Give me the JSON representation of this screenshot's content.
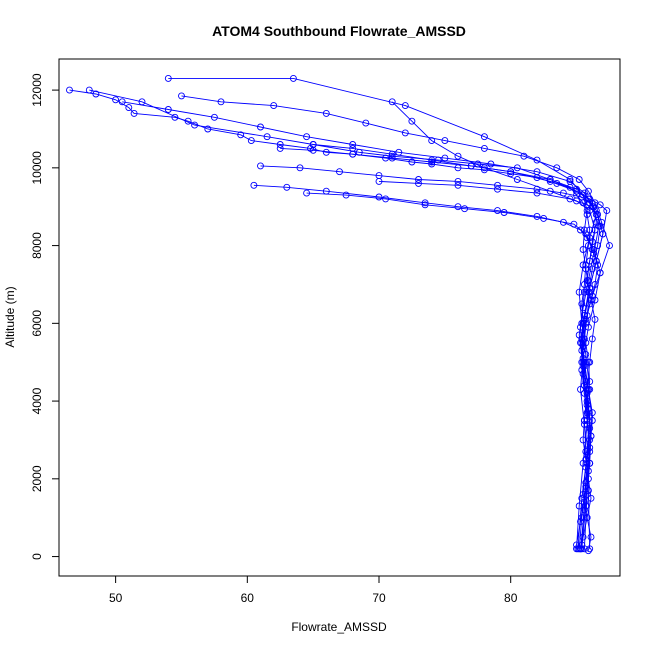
{
  "chart_data": {
    "type": "line",
    "title": "ATOM4 Southbound Flowrate_AMSSD",
    "xlabel": "Flowrate_AMSSD",
    "ylabel": "Altitude (m)",
    "xlim": [
      45.7,
      88.3
    ],
    "ylim": [
      -500,
      12800
    ],
    "x_ticks": [
      50,
      60,
      70,
      80
    ],
    "y_ticks": [
      0,
      2000,
      4000,
      6000,
      8000,
      10000,
      12000
    ],
    "marker": "open-circle",
    "series_color": "#0000ff",
    "grid": false,
    "legend": "none",
    "series": [
      {
        "x": [
          46.5,
          48.5,
          50.0,
          51.0,
          51.4,
          54.5,
          55.5,
          57.0,
          59.5,
          60.3,
          62.5,
          64.8,
          66.0,
          68.0,
          70.5,
          72.5,
          74.0,
          76.0,
          78.0,
          80.0,
          82.0,
          83.5,
          84.5,
          85.0,
          85.5,
          85.8,
          86.0,
          85.9,
          85.7,
          85.6,
          85.4,
          85.5,
          85.7,
          85.9,
          86.0,
          85.8,
          85.6,
          85.5,
          85.7,
          85.9,
          86.1,
          85.8,
          85.5,
          85.3
        ],
        "y": [
          12000,
          11900,
          11750,
          11550,
          11400,
          11300,
          11200,
          11000,
          10850,
          10700,
          10600,
          10500,
          10400,
          10350,
          10250,
          10150,
          10100,
          10000,
          9950,
          9850,
          9750,
          9600,
          9500,
          9300,
          9100,
          8800,
          8400,
          8000,
          7500,
          7000,
          6500,
          6000,
          5500,
          5000,
          4500,
          4000,
          3500,
          3000,
          2500,
          2000,
          1500,
          1000,
          500,
          200
        ]
      },
      {
        "x": [
          54.0,
          63.5,
          72.0,
          78.0,
          82.0,
          84.5,
          85.5,
          85.8,
          85.6,
          85.5,
          85.7,
          86.0,
          85.8,
          85.6,
          85.4,
          85.6,
          85.9,
          86.1,
          86.0,
          85.8,
          85.6
        ],
        "y": [
          12300,
          12300,
          11600,
          10800,
          10200,
          9700,
          9300,
          8900,
          8400,
          7900,
          7400,
          6800,
          6200,
          5600,
          5000,
          4400,
          3800,
          3100,
          2400,
          1600,
          200
        ]
      },
      {
        "x": [
          48.0,
          52.0,
          56.0,
          61.5,
          65.0,
          68.5,
          71.0,
          74.5,
          77.5,
          80.5,
          83.0,
          85.0,
          85.9,
          86.3,
          86.5,
          86.2,
          86.0,
          85.8,
          86.1,
          86.4,
          86.2,
          86.0,
          85.8,
          85.6,
          85.7,
          85.9,
          86.0
        ],
        "y": [
          12000,
          11700,
          11100,
          10800,
          10600,
          10400,
          10300,
          10200,
          10100,
          10000,
          9700,
          9400,
          9200,
          9000,
          8600,
          8100,
          7600,
          7100,
          6600,
          6100,
          5600,
          5000,
          4300,
          3500,
          2700,
          1700,
          200
        ]
      },
      {
        "x": [
          60.5,
          63.0,
          66.0,
          70.0,
          73.5,
          76.0,
          79.0,
          82.0,
          84.0,
          85.3,
          85.8,
          86.2,
          86.6,
          86.4,
          86.0,
          85.7,
          85.5,
          85.4,
          85.6,
          85.8,
          86.0,
          85.7,
          85.3,
          85.0
        ],
        "y": [
          9550,
          9500,
          9400,
          9250,
          9100,
          9000,
          8900,
          8750,
          8600,
          8400,
          8200,
          7900,
          7500,
          7000,
          6500,
          6000,
          5400,
          4800,
          4200,
          3500,
          2800,
          1800,
          900,
          300
        ]
      },
      {
        "x": [
          61.0,
          64.0,
          67.0,
          70.0,
          73.0,
          76.0,
          79.0,
          82.0,
          84.0,
          85.4,
          86.0,
          86.5,
          86.8,
          86.6,
          86.2,
          85.9,
          85.6,
          85.4,
          85.6,
          85.9,
          86.2,
          86.0,
          85.7,
          85.4,
          85.2
        ],
        "y": [
          10050,
          10000,
          9900,
          9800,
          9700,
          9650,
          9550,
          9450,
          9350,
          9250,
          9100,
          8900,
          8500,
          8000,
          7400,
          6800,
          6200,
          5600,
          5000,
          4300,
          3500,
          2700,
          1900,
          1000,
          200
        ]
      },
      {
        "x": [
          62.5,
          65.0,
          68.0,
          71.0,
          74.0,
          77.0,
          80.0,
          83.0,
          85.0,
          86.0,
          86.8,
          87.3,
          87.0,
          86.5,
          86.0,
          85.6,
          85.3,
          85.5,
          85.8,
          86.1,
          85.9,
          85.6,
          85.3
        ],
        "y": [
          10500,
          10450,
          10350,
          10250,
          10150,
          10050,
          9900,
          9650,
          9400,
          9200,
          9050,
          8900,
          8300,
          7600,
          6900,
          6200,
          5500,
          4700,
          3900,
          3100,
          2200,
          1200,
          200
        ]
      },
      {
        "x": [
          55.0,
          58.0,
          62.0,
          66.0,
          69.0,
          72.0,
          75.0,
          78.0,
          81.0,
          83.5,
          85.2,
          85.9,
          86.4,
          86.9,
          87.5,
          86.8,
          86.2,
          85.7,
          85.4,
          85.6,
          85.9,
          86.2,
          86.0,
          85.7,
          85.5,
          85.8,
          86.1,
          85.9
        ],
        "y": [
          11850,
          11700,
          11600,
          11400,
          11150,
          10900,
          10700,
          10500,
          10300,
          10000,
          9700,
          9400,
          9100,
          8600,
          8000,
          7300,
          6700,
          6100,
          5500,
          4900,
          4300,
          3700,
          3000,
          2300,
          1600,
          1000,
          500,
          150
        ]
      },
      {
        "x": [
          50.5,
          54.0,
          57.5,
          61.0,
          64.5,
          68.0,
          71.5,
          75.0,
          78.5,
          82.0,
          84.5,
          85.6,
          86.2,
          86.7,
          86.3,
          85.9,
          85.5,
          85.2,
          85.5,
          85.8,
          86.0,
          85.8,
          85.6,
          85.4
        ],
        "y": [
          11700,
          11500,
          11300,
          11050,
          10800,
          10600,
          10400,
          10250,
          10100,
          9900,
          9650,
          9350,
          9000,
          8500,
          7800,
          7100,
          6400,
          5700,
          5000,
          4200,
          3300,
          2400,
          1400,
          300
        ]
      },
      {
        "x": [
          65.0,
          68.0,
          71.0,
          74.0,
          77.0,
          80.0,
          83.0,
          85.0,
          85.9,
          86.5,
          86.0,
          85.5,
          85.2,
          85.4,
          85.7,
          86.0,
          85.8,
          85.5,
          85.2,
          85.0
        ],
        "y": [
          10600,
          10500,
          10350,
          10200,
          10050,
          9900,
          9700,
          9450,
          9200,
          8800,
          8200,
          7500,
          6800,
          6000,
          5200,
          4300,
          3400,
          2400,
          1300,
          200
        ]
      },
      {
        "x": [
          70.0,
          73.0,
          76.0,
          79.0,
          82.0,
          84.5,
          85.8,
          86.6,
          87.0,
          86.5,
          86.0,
          85.6,
          85.4,
          85.7,
          86.0,
          85.8,
          85.4,
          85.1
        ],
        "y": [
          9650,
          9600,
          9550,
          9450,
          9350,
          9200,
          9050,
          8800,
          8300,
          7600,
          6900,
          6100,
          5300,
          4500,
          3600,
          2600,
          1500,
          200
        ]
      },
      {
        "x": [
          64.5,
          67.5,
          70.5,
          73.5,
          76.5,
          79.5,
          82.5,
          84.8,
          85.7,
          86.3,
          86.8,
          86.4,
          85.9,
          85.5,
          85.3,
          85.6,
          86.0,
          85.7,
          85.4
        ],
        "y": [
          9350,
          9300,
          9200,
          9050,
          8950,
          8850,
          8700,
          8550,
          8300,
          7900,
          7300,
          6600,
          5900,
          5100,
          4300,
          3400,
          2400,
          1300,
          200
        ]
      },
      {
        "x": [
          71.0,
          72.5,
          74.0,
          76.0,
          78.0,
          80.5,
          83.0,
          85.0,
          86.0,
          86.4,
          86.0,
          85.6,
          85.3,
          85.5,
          85.8,
          86.0
        ],
        "y": [
          11700,
          11200,
          10700,
          10300,
          10000,
          9700,
          9400,
          9150,
          8900,
          8400,
          7600,
          6800,
          5900,
          4900,
          3700,
          2400
        ]
      }
    ]
  }
}
